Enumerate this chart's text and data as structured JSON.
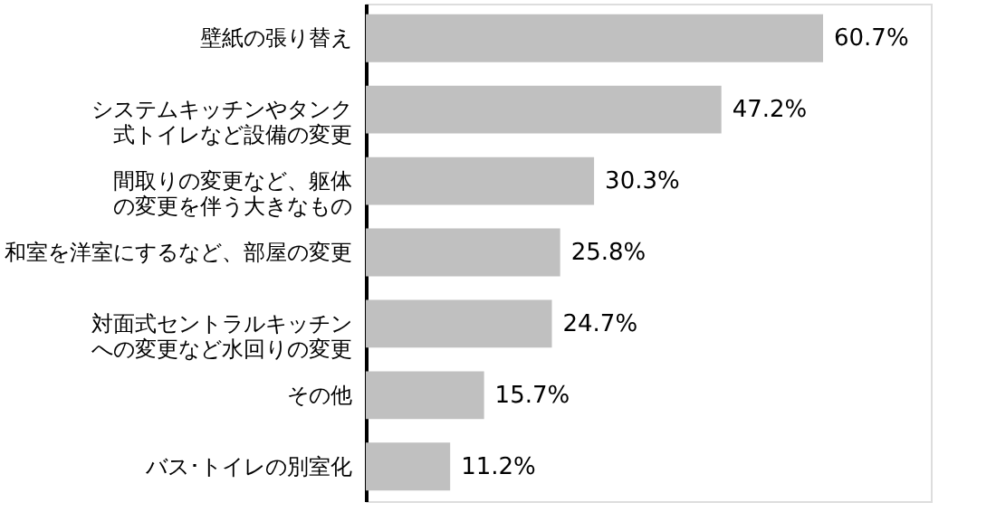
{
  "chart_data": {
    "type": "bar",
    "orientation": "horizontal",
    "categories": [
      "壁紙の張り替え",
      "システムキッチンやタンク式トイレなど設備の変更",
      "間取りの変更など、躯体の変更を伴う大きなもの",
      "和室を洋室にするなど、部屋の変更",
      "対面式セントラルキッチンへの変更など水回りの変更",
      "その他",
      "バス･トイレの別室化"
    ],
    "values": [
      60.7,
      47.2,
      30.3,
      25.8,
      24.7,
      15.7,
      11.2
    ],
    "value_labels": [
      "60.7%",
      "47.2%",
      "30.3%",
      "25.8%",
      "24.7%",
      "15.7%",
      "11.2%"
    ],
    "color": "#c0c0c0",
    "xlim": [
      0,
      75
    ],
    "tick_labels": "y"
  }
}
